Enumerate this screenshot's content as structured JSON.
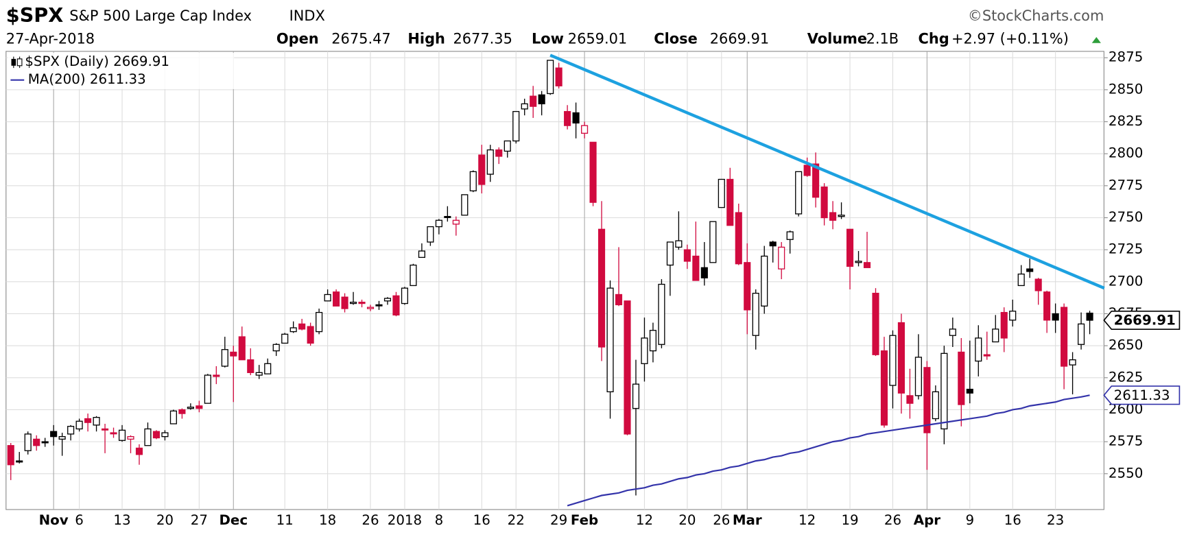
{
  "header": {
    "symbol": "$SPX",
    "name": "S&P 500 Large Cap Index",
    "exchange": "INDX",
    "brand": "©StockCharts.com",
    "date": "27-Apr-2018",
    "open_label": "Open",
    "open": "2675.47",
    "high_label": "High",
    "high": "2677.35",
    "low_label": "Low",
    "low": "2659.01",
    "close_label": "Close",
    "close": "2669.91",
    "volume_label": "Volume",
    "volume": "2.1B",
    "chg_label": "Chg",
    "chg": "+2.97 (+0.11%)"
  },
  "chart_data": {
    "type": "candlestick",
    "legend": [
      "$SPX (Daily) 2669.91",
      "MA(200) 2611.33"
    ],
    "colors": {
      "up": "#000000",
      "down": "#d10a3f",
      "ma": "#3333aa",
      "trendline": "#1da1e0",
      "chg": "#2e9e3a"
    },
    "ylim": [
      2522,
      2880
    ],
    "yticks": [
      2550,
      2575,
      2600,
      2625,
      2650,
      2675,
      2700,
      2725,
      2750,
      2775,
      2800,
      2825,
      2850,
      2875
    ],
    "grid": true,
    "categories": [
      null,
      null,
      null,
      null,
      null,
      "Nov",
      null,
      null,
      "6",
      null,
      null,
      null,
      null,
      "13",
      null,
      null,
      null,
      null,
      "20",
      null,
      null,
      null,
      "27",
      null,
      null,
      null,
      "Dec",
      null,
      null,
      null,
      null,
      null,
      "11",
      null,
      null,
      null,
      null,
      "18",
      null,
      null,
      null,
      null,
      "26",
      null,
      null,
      null,
      "2018",
      null,
      null,
      null,
      "8",
      null,
      null,
      null,
      null,
      "16",
      null,
      null,
      null,
      "22",
      null,
      null,
      null,
      null,
      "29",
      null,
      null,
      "Feb",
      null,
      null,
      null,
      null,
      null,
      null,
      "12",
      null,
      null,
      null,
      null,
      "20",
      null,
      null,
      null,
      "26",
      null,
      null,
      "Mar",
      null,
      null,
      null,
      null,
      null,
      null,
      "12",
      null,
      null,
      null,
      null,
      "19",
      null,
      null,
      null,
      null,
      "26",
      null,
      null,
      null,
      "Apr",
      null,
      null,
      null,
      null,
      "9",
      null,
      null,
      null,
      null,
      "16",
      null,
      null,
      null,
      null,
      "23",
      null,
      null,
      null,
      null
    ],
    "ohlc": [
      [
        2572,
        2574,
        2545,
        2557
      ],
      [
        2560,
        2567,
        2558,
        2560
      ],
      [
        2568,
        2583,
        2565,
        2581
      ],
      [
        2577,
        2580,
        2568,
        2572
      ],
      [
        2575,
        2578,
        2571,
        2575
      ],
      [
        2583,
        2588,
        2572,
        2579
      ],
      [
        2577,
        2582,
        2564,
        2579
      ],
      [
        2581,
        2588,
        2576,
        2587
      ],
      [
        2585,
        2593,
        2583,
        2591
      ],
      [
        2593,
        2597,
        2583,
        2590
      ],
      [
        2588,
        2595,
        2583,
        2594
      ],
      [
        2585,
        2589,
        2566,
        2585
      ],
      [
        2582,
        2586,
        2578,
        2582
      ],
      [
        2576,
        2588,
        2575,
        2584
      ],
      [
        2577,
        2580,
        2566,
        2579
      ],
      [
        2570,
        2573,
        2557,
        2565
      ],
      [
        2572,
        2590,
        2572,
        2585
      ],
      [
        2583,
        2584,
        2577,
        2578
      ],
      [
        2579,
        2584,
        2576,
        2582
      ],
      [
        2589,
        2600,
        2589,
        2599
      ],
      [
        2600,
        2601,
        2593,
        2597
      ],
      [
        2601,
        2605,
        2600,
        2602
      ],
      [
        2603,
        2607,
        2598,
        2601
      ],
      [
        2605,
        2628,
        2605,
        2627
      ],
      [
        2627,
        2634,
        2620,
        2626
      ],
      [
        2634,
        2657,
        2633,
        2647
      ],
      [
        2645,
        2650,
        2606,
        2642
      ],
      [
        2657,
        2665,
        2639,
        2639
      ],
      [
        2639,
        2648,
        2627,
        2629
      ],
      [
        2627,
        2635,
        2624,
        2629
      ],
      [
        2628,
        2640,
        2628,
        2636
      ],
      [
        2646,
        2652,
        2642,
        2651
      ],
      [
        2652,
        2660,
        2652,
        2659
      ],
      [
        2661,
        2669,
        2660,
        2664
      ],
      [
        2667,
        2671,
        2662,
        2663
      ],
      [
        2665,
        2668,
        2650,
        2652
      ],
      [
        2661,
        2679,
        2659,
        2676
      ],
      [
        2685,
        2694,
        2685,
        2690
      ],
      [
        2692,
        2694,
        2681,
        2681
      ],
      [
        2688,
        2691,
        2676,
        2679
      ],
      [
        2683,
        2692,
        2682,
        2684
      ],
      [
        2684,
        2686,
        2680,
        2683
      ],
      [
        2679,
        2682,
        2677,
        2680
      ],
      [
        2682,
        2685,
        2678,
        2682
      ],
      [
        2685,
        2688,
        2682,
        2687
      ],
      [
        2689,
        2692,
        2673,
        2674
      ],
      [
        2683,
        2696,
        2682,
        2695
      ],
      [
        2697,
        2714,
        2697,
        2713
      ],
      [
        2719,
        2730,
        2719,
        2724
      ],
      [
        2731,
        2743,
        2728,
        2743
      ],
      [
        2743,
        2749,
        2737,
        2748
      ],
      [
        2751,
        2759,
        2747,
        2751
      ],
      [
        2745,
        2751,
        2736,
        2748
      ],
      [
        2752,
        2768,
        2752,
        2768
      ],
      [
        2771,
        2787,
        2770,
        2786
      ],
      [
        2799,
        2807,
        2769,
        2776
      ],
      [
        2784,
        2807,
        2778,
        2803
      ],
      [
        2803,
        2805,
        2792,
        2798
      ],
      [
        2802,
        2810,
        2797,
        2810
      ],
      [
        2810,
        2833,
        2808,
        2833
      ],
      [
        2835,
        2843,
        2830,
        2839
      ],
      [
        2845,
        2853,
        2828,
        2837
      ],
      [
        2846,
        2849,
        2830,
        2839
      ],
      [
        2847,
        2873,
        2846,
        2873
      ],
      [
        2867,
        2871,
        2851,
        2853
      ],
      [
        2833,
        2838,
        2819,
        2822
      ],
      [
        2832,
        2840,
        2812,
        2824
      ],
      [
        2816,
        2825,
        2812,
        2822
      ],
      [
        2809,
        2809,
        2759,
        2762
      ],
      [
        2741,
        2763,
        2638,
        2649
      ],
      [
        2614,
        2701,
        2593,
        2695
      ],
      [
        2690,
        2727,
        2681,
        2682
      ],
      [
        2685,
        2685,
        2580,
        2581
      ],
      [
        2601,
        2639,
        2533,
        2620
      ],
      [
        2636,
        2672,
        2622,
        2656
      ],
      [
        2646,
        2668,
        2637,
        2662
      ],
      [
        2651,
        2702,
        2648,
        2698
      ],
      [
        2713,
        2731,
        2689,
        2731
      ],
      [
        2727,
        2755,
        2725,
        2732
      ],
      [
        2725,
        2729,
        2710,
        2716
      ],
      [
        2720,
        2747,
        2701,
        2701
      ],
      [
        2711,
        2731,
        2697,
        2703
      ],
      [
        2715,
        2747,
        2715,
        2747
      ],
      [
        2758,
        2780,
        2758,
        2780
      ],
      [
        2780,
        2789,
        2744,
        2744
      ],
      [
        2754,
        2761,
        2713,
        2714
      ],
      [
        2715,
        2730,
        2659,
        2678
      ],
      [
        2658,
        2694,
        2647,
        2691
      ],
      [
        2681,
        2728,
        2675,
        2720
      ],
      [
        2731,
        2732,
        2715,
        2728
      ],
      [
        2710,
        2731,
        2702,
        2727
      ],
      [
        2733,
        2740,
        2722,
        2739
      ],
      [
        2753,
        2786,
        2751,
        2786
      ],
      [
        2791,
        2797,
        2782,
        2783
      ],
      [
        2792,
        2801,
        2758,
        2766
      ],
      [
        2774,
        2777,
        2744,
        2750
      ],
      [
        2754,
        2763,
        2741,
        2748
      ],
      [
        2751,
        2762,
        2749,
        2752
      ],
      [
        2741,
        2741,
        2694,
        2712
      ],
      [
        2715,
        2724,
        2712,
        2716
      ],
      [
        2715,
        2739,
        2711,
        2711
      ],
      [
        2691,
        2695,
        2642,
        2643
      ],
      [
        2646,
        2657,
        2586,
        2588
      ],
      [
        2619,
        2662,
        2601,
        2658
      ],
      [
        2668,
        2675,
        2597,
        2613
      ],
      [
        2611,
        2632,
        2593,
        2605
      ],
      [
        2611,
        2659,
        2608,
        2641
      ],
      [
        2633,
        2638,
        2553,
        2582
      ],
      [
        2593,
        2619,
        2591,
        2614
      ],
      [
        2585,
        2650,
        2573,
        2644
      ],
      [
        2658,
        2672,
        2649,
        2663
      ],
      [
        2645,
        2656,
        2587,
        2604
      ],
      [
        2616,
        2654,
        2605,
        2613
      ],
      [
        2638,
        2666,
        2626,
        2656
      ],
      [
        2643,
        2661,
        2639,
        2642
      ],
      [
        2653,
        2674,
        2653,
        2663
      ],
      [
        2676,
        2680,
        2645,
        2656
      ],
      [
        2670,
        2686,
        2665,
        2677
      ],
      [
        2697,
        2713,
        2697,
        2706
      ],
      [
        2710,
        2718,
        2703,
        2708
      ],
      [
        2702,
        2703,
        2682,
        2693
      ],
      [
        2692,
        2693,
        2660,
        2670
      ],
      [
        2675,
        2683,
        2660,
        2670
      ],
      [
        2680,
        2683,
        2616,
        2634
      ],
      [
        2635,
        2645,
        2612,
        2639
      ],
      [
        2651,
        2676,
        2647,
        2667
      ],
      [
        2675.47,
        2677.35,
        2659.01,
        2669.91
      ]
    ],
    "ma": [
      null,
      null,
      null,
      null,
      null,
      null,
      null,
      null,
      null,
      null,
      null,
      null,
      null,
      null,
      null,
      null,
      null,
      null,
      null,
      null,
      null,
      null,
      null,
      null,
      null,
      null,
      null,
      null,
      null,
      null,
      null,
      null,
      null,
      null,
      null,
      null,
      null,
      null,
      null,
      null,
      null,
      null,
      null,
      null,
      null,
      null,
      null,
      null,
      null,
      null,
      null,
      null,
      null,
      null,
      null,
      null,
      null,
      null,
      null,
      null,
      null,
      null,
      null,
      null,
      null,
      2525,
      2527,
      2529,
      2531,
      2533,
      2534,
      2535,
      2537,
      2538,
      2539,
      2541,
      2542,
      2544,
      2546,
      2547,
      2549,
      2550,
      2552,
      2553,
      2555,
      2556,
      2558,
      2560,
      2561,
      2563,
      2564,
      2566,
      2567,
      2569,
      2571,
      2573,
      2575,
      2576,
      2578,
      2579,
      2581,
      2582,
      2583,
      2584,
      2585,
      2586,
      2587,
      2588,
      2589,
      2590,
      2591,
      2592,
      2593,
      2594,
      2595,
      2597,
      2598,
      2600,
      2601,
      2603,
      2604,
      2605,
      2606,
      2608,
      2609,
      2610,
      2611.33
    ],
    "trendline": {
      "start": [
        63,
        2877
      ],
      "end": [
        127.7,
        2695
      ]
    }
  }
}
